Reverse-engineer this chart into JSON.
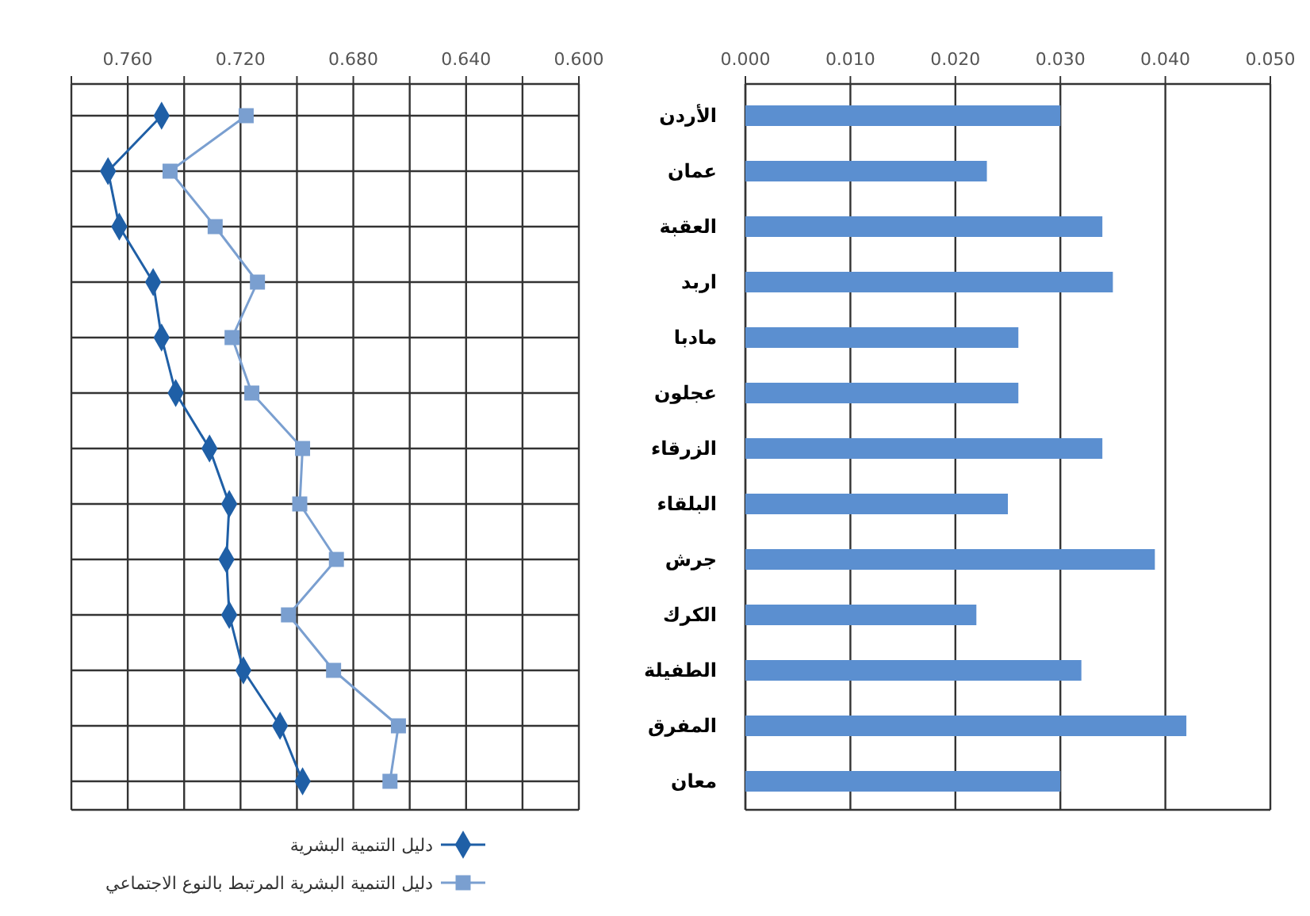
{
  "chart_data": [
    {
      "type": "line",
      "orientation": "horizontal",
      "categories": [
        null,
        null,
        null,
        null,
        null,
        null,
        null,
        null,
        null,
        null,
        null,
        null,
        null
      ],
      "xlim": [
        0.78,
        0.6
      ],
      "xticks": [
        {
          "value": 0.78,
          "label": null
        },
        {
          "value": 0.76,
          "label": "0.760"
        },
        {
          "value": 0.74,
          "label": null
        },
        {
          "value": 0.72,
          "label": "0.720"
        },
        {
          "value": 0.7,
          "label": null
        },
        {
          "value": 0.68,
          "label": "0.680"
        },
        {
          "value": 0.66,
          "label": null
        },
        {
          "value": 0.64,
          "label": "0.640"
        },
        {
          "value": 0.62,
          "label": null
        },
        {
          "value": 0.6,
          "label": "0.600"
        }
      ],
      "grid": true,
      "legend": "bottom",
      "tick_labels": "x",
      "series": [
        {
          "name": "دليل التنمية البشرية",
          "color": "#1f5fa6",
          "marker": "diamond",
          "values": [
            0.748,
            0.767,
            0.763,
            0.751,
            0.748,
            0.743,
            0.731,
            0.724,
            0.725,
            0.724,
            0.719,
            0.706,
            0.698
          ]
        },
        {
          "name": "دليل التنمية البشرية المرتبط بالنوع الاجتماعي",
          "color": "#7a9fd0",
          "marker": "square",
          "values": [
            0.718,
            0.745,
            0.729,
            0.714,
            0.723,
            0.716,
            0.698,
            0.699,
            0.686,
            0.703,
            0.687,
            0.664,
            0.667
          ]
        }
      ]
    },
    {
      "type": "bar",
      "orientation": "horizontal",
      "categories": [
        "الأردن",
        "عمان",
        "العقبة",
        "اربد",
        "مادبا",
        "عجلون",
        "الزرقاء",
        "البلقاء",
        "جرش",
        "الكرك",
        "الطفيلة",
        "المفرق",
        "معان"
      ],
      "xlim": [
        0,
        0.05
      ],
      "xticks": [
        {
          "value": 0,
          "label": "0.000"
        },
        {
          "value": 0.01,
          "label": "0.010"
        },
        {
          "value": 0.02,
          "label": "0.020"
        },
        {
          "value": 0.03,
          "label": "0.030"
        },
        {
          "value": 0.04,
          "label": "0.040"
        },
        {
          "value": 0.05,
          "label": "0.050"
        }
      ],
      "grid": "x",
      "color": "#5b8fd0",
      "values": [
        0.03,
        0.023,
        0.034,
        0.035,
        0.026,
        0.026,
        0.034,
        0.025,
        0.039,
        0.022,
        0.032,
        0.042,
        0.03
      ]
    }
  ]
}
